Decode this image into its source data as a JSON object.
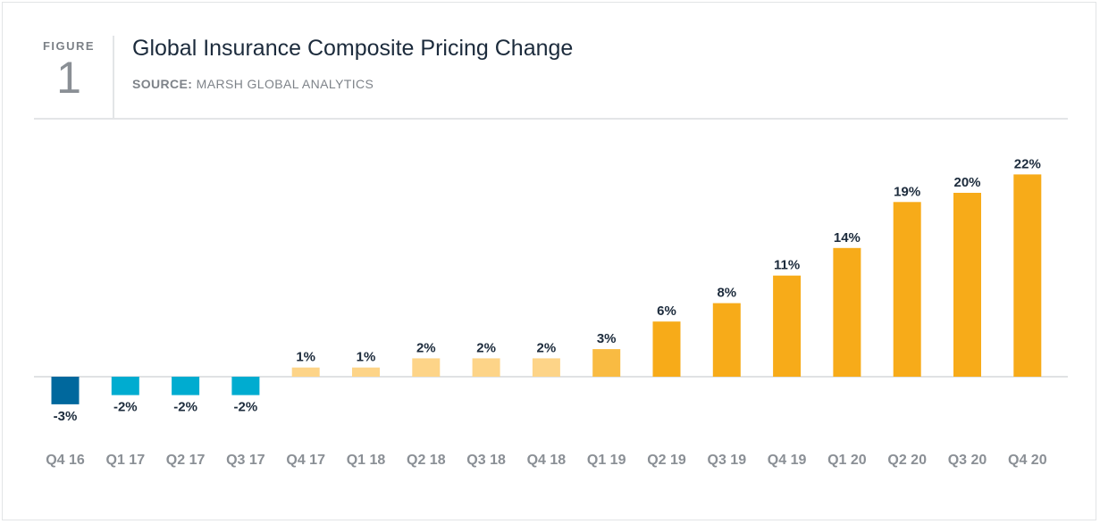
{
  "header": {
    "figure_word": "FIGURE",
    "figure_number": "1",
    "title": "Global Insurance Composite Pricing Change",
    "source_label": "SOURCE:",
    "source_text": "MARSH GLOBAL ANALYTICS"
  },
  "chart_data": {
    "type": "bar",
    "title": "Global Insurance Composite Pricing Change",
    "xlabel": "",
    "ylabel": "",
    "ylim": [
      -3,
      22
    ],
    "grid": false,
    "categories": [
      "Q4 16",
      "Q1 17",
      "Q2 17",
      "Q3 17",
      "Q4 17",
      "Q1 18",
      "Q2 18",
      "Q3 18",
      "Q4 18",
      "Q1 19",
      "Q2 19",
      "Q3 19",
      "Q4 19",
      "Q1 20",
      "Q2 20",
      "Q3 20",
      "Q4 20"
    ],
    "values": [
      -3,
      -2,
      -2,
      -2,
      1,
      1,
      2,
      2,
      2,
      3,
      6,
      8,
      11,
      14,
      19,
      20,
      22
    ],
    "value_labels": [
      "-3%",
      "-2%",
      "-2%",
      "-2%",
      "1%",
      "1%",
      "2%",
      "2%",
      "2%",
      "3%",
      "6%",
      "8%",
      "11%",
      "14%",
      "19%",
      "20%",
      "22%"
    ],
    "bar_colors": [
      "#00689d",
      "#00acd0",
      "#00acd0",
      "#00acd0",
      "#fdd488",
      "#fdd488",
      "#fdd488",
      "#fdd488",
      "#fdd488",
      "#f9bb42",
      "#f7ab19",
      "#f7ab19",
      "#f7ab19",
      "#f7ab19",
      "#f7ab19",
      "#f7ab19",
      "#f7ab19"
    ],
    "baseline_color": "#d5d8db"
  }
}
